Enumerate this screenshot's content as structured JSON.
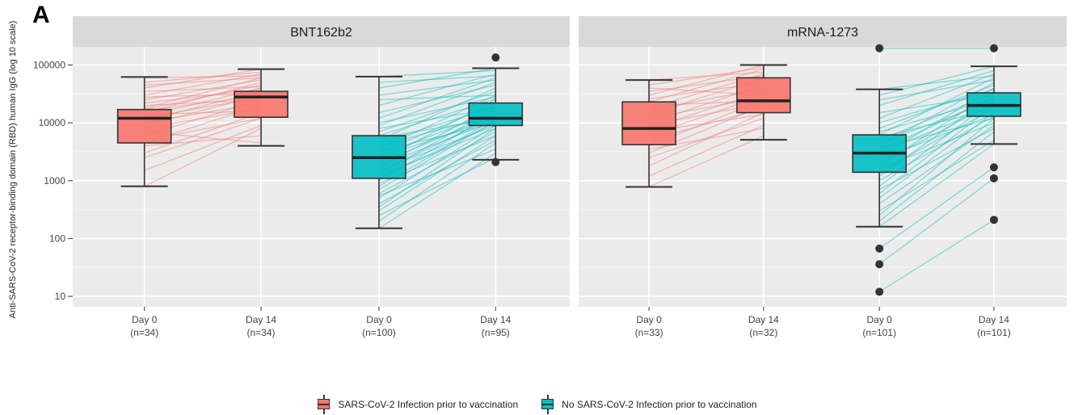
{
  "panel_label": "A",
  "chart_data": {
    "type": "box",
    "scale": "log10",
    "ylabel": "Anti-SARS-CoV-2 receptor-binding domain (RBD) human IgG (log 10 scale)",
    "yticks": [
      10,
      100,
      1000,
      10000,
      100000
    ],
    "ytick_labels": [
      "10",
      "100",
      "1000",
      "10000",
      "100000"
    ],
    "ylim": [
      8,
      170000
    ],
    "legend": {
      "position": "bottom",
      "entries": [
        {
          "name": "SARS-CoV-2 Infection prior to vaccination",
          "color": "#F8766D"
        },
        {
          "name": "No SARS-CoV-2 Infection prior to vaccination",
          "color": "#00BFC4"
        }
      ]
    },
    "panels": [
      {
        "title": "BNT162b2",
        "groups": [
          {
            "label": "Day 0",
            "n_label": "(n=34)",
            "series": "SARS-CoV-2 Infection prior to vaccination",
            "min": 800,
            "q1": 4500,
            "median": 12000,
            "q3": 17000,
            "max": 62000,
            "outliers": []
          },
          {
            "label": "Day 14",
            "n_label": "(n=34)",
            "series": "SARS-CoV-2 Infection prior to vaccination",
            "min": 4000,
            "q1": 12500,
            "median": 28000,
            "q3": 35000,
            "max": 85000,
            "outliers": []
          },
          {
            "label": "Day 0",
            "n_label": "(n=100)",
            "series": "No SARS-CoV-2 Infection prior to vaccination",
            "min": 150,
            "q1": 1100,
            "median": 2500,
            "q3": 6000,
            "max": 63000,
            "outliers": []
          },
          {
            "label": "Day 14",
            "n_label": "(n=95)",
            "series": "No SARS-CoV-2 Infection prior to vaccination",
            "min": 2300,
            "q1": 9000,
            "median": 12000,
            "q3": 22000,
            "max": 88000,
            "outliers": [
              2100,
              135000
            ]
          }
        ]
      },
      {
        "title": "mRNA-1273",
        "groups": [
          {
            "label": "Day 0",
            "n_label": "(n=33)",
            "series": "SARS-CoV-2 Infection prior to vaccination",
            "min": 780,
            "q1": 4200,
            "median": 8000,
            "q3": 23000,
            "max": 55000,
            "outliers": []
          },
          {
            "label": "Day 14",
            "n_label": "(n=32)",
            "series": "SARS-CoV-2 Infection prior to vaccination",
            "min": 5100,
            "q1": 15000,
            "median": 24000,
            "q3": 60000,
            "max": 100000,
            "outliers": []
          },
          {
            "label": "Day 0",
            "n_label": "(n=101)",
            "series": "No SARS-CoV-2 Infection prior to vaccination",
            "min": 160,
            "q1": 1400,
            "median": 3000,
            "q3": 6200,
            "max": 38000,
            "outliers": [
              12,
              36,
              67,
              195000
            ]
          },
          {
            "label": "Day 14",
            "n_label": "(n=101)",
            "series": "No SARS-CoV-2 Infection prior to vaccination",
            "min": 4300,
            "q1": 13000,
            "median": 20000,
            "q3": 33000,
            "max": 95000,
            "outliers": [
              210,
              1100,
              1700,
              195000
            ]
          }
        ]
      }
    ],
    "paired_lines": {
      "BNT162b2": {
        "SARS-CoV-2 Infection prior to vaccination": [
          [
            800,
            8000
          ],
          [
            1500,
            9000
          ],
          [
            2500,
            12000
          ],
          [
            3000,
            15000
          ],
          [
            4000,
            6000
          ],
          [
            4500,
            20000
          ],
          [
            5000,
            12000
          ],
          [
            6000,
            25000
          ],
          [
            7000,
            4500
          ],
          [
            8000,
            18000
          ],
          [
            9000,
            30000
          ],
          [
            10000,
            22000
          ],
          [
            11000,
            35000
          ],
          [
            12000,
            28000
          ],
          [
            13000,
            40000
          ],
          [
            14000,
            16000
          ],
          [
            15000,
            50000
          ],
          [
            16000,
            30000
          ],
          [
            17000,
            45000
          ],
          [
            18000,
            60000
          ],
          [
            20000,
            25000
          ],
          [
            22000,
            38000
          ],
          [
            25000,
            55000
          ],
          [
            28000,
            32000
          ],
          [
            30000,
            70000
          ],
          [
            35000,
            42000
          ],
          [
            40000,
            85000
          ],
          [
            45000,
            60000
          ],
          [
            50000,
            75000
          ],
          [
            60000,
            65000
          ]
        ],
        "No SARS-CoV-2 Infection prior to vaccination": [
          [
            150,
            3000
          ],
          [
            200,
            4500
          ],
          [
            250,
            2500
          ],
          [
            300,
            6000
          ],
          [
            350,
            8000
          ],
          [
            400,
            5000
          ],
          [
            500,
            9000
          ],
          [
            550,
            3500
          ],
          [
            600,
            7000
          ],
          [
            700,
            11000
          ],
          [
            800,
            12000
          ],
          [
            900,
            6000
          ],
          [
            1000,
            15000
          ],
          [
            1100,
            10000
          ],
          [
            1200,
            8000
          ],
          [
            1300,
            18000
          ],
          [
            1400,
            13000
          ],
          [
            1500,
            9000
          ],
          [
            1700,
            20000
          ],
          [
            1800,
            11000
          ],
          [
            2000,
            14000
          ],
          [
            2200,
            25000
          ],
          [
            2500,
            12000
          ],
          [
            2700,
            16000
          ],
          [
            3000,
            22000
          ],
          [
            3200,
            10000
          ],
          [
            3500,
            30000
          ],
          [
            4000,
            14000
          ],
          [
            4500,
            19000
          ],
          [
            5000,
            40000
          ],
          [
            5500,
            12000
          ],
          [
            6000,
            26000
          ],
          [
            7000,
            35000
          ],
          [
            8000,
            18000
          ],
          [
            9000,
            50000
          ],
          [
            10000,
            28000
          ],
          [
            12000,
            60000
          ],
          [
            15000,
            45000
          ],
          [
            20000,
            70000
          ],
          [
            25000,
            30000
          ],
          [
            30000,
            55000
          ],
          [
            40000,
            88000
          ],
          [
            50000,
            65000
          ],
          [
            63000,
            80000
          ]
        ]
      },
      "mRNA-1273": {
        "SARS-CoV-2 Infection prior to vaccination": [
          [
            780,
            6000
          ],
          [
            1200,
            9000
          ],
          [
            1800,
            15000
          ],
          [
            2500,
            12000
          ],
          [
            3000,
            20000
          ],
          [
            3500,
            8000
          ],
          [
            4000,
            25000
          ],
          [
            5000,
            18000
          ],
          [
            6000,
            30000
          ],
          [
            7000,
            14000
          ],
          [
            8000,
            35000
          ],
          [
            9000,
            22000
          ],
          [
            10000,
            45000
          ],
          [
            12000,
            28000
          ],
          [
            14000,
            60000
          ],
          [
            16000,
            40000
          ],
          [
            18000,
            70000
          ],
          [
            20000,
            24000
          ],
          [
            23000,
            85000
          ],
          [
            26000,
            50000
          ],
          [
            30000,
            100000
          ],
          [
            35000,
            65000
          ],
          [
            40000,
            30000
          ],
          [
            45000,
            90000
          ],
          [
            55000,
            75000
          ]
        ],
        "No SARS-CoV-2 Infection prior to vaccination": [
          [
            12,
            210
          ],
          [
            36,
            1100
          ],
          [
            67,
            1700
          ],
          [
            160,
            4300
          ],
          [
            200,
            7000
          ],
          [
            250,
            12000
          ],
          [
            300,
            5000
          ],
          [
            400,
            9000
          ],
          [
            500,
            15000
          ],
          [
            600,
            20000
          ],
          [
            700,
            8000
          ],
          [
            800,
            25000
          ],
          [
            1000,
            13000
          ],
          [
            1200,
            30000
          ],
          [
            1400,
            18000
          ],
          [
            1600,
            10000
          ],
          [
            1800,
            35000
          ],
          [
            2000,
            22000
          ],
          [
            2300,
            14000
          ],
          [
            2600,
            40000
          ],
          [
            3000,
            20000
          ],
          [
            3300,
            28000
          ],
          [
            3600,
            12000
          ],
          [
            4000,
            50000
          ],
          [
            4500,
            24000
          ],
          [
            5000,
            33000
          ],
          [
            5500,
            18000
          ],
          [
            6200,
            60000
          ],
          [
            7000,
            26000
          ],
          [
            8000,
            45000
          ],
          [
            10000,
            38000
          ],
          [
            12000,
            70000
          ],
          [
            15000,
            30000
          ],
          [
            20000,
            80000
          ],
          [
            25000,
            55000
          ],
          [
            30000,
            95000
          ],
          [
            38000,
            65000
          ],
          [
            195000,
            195000
          ]
        ]
      }
    }
  }
}
